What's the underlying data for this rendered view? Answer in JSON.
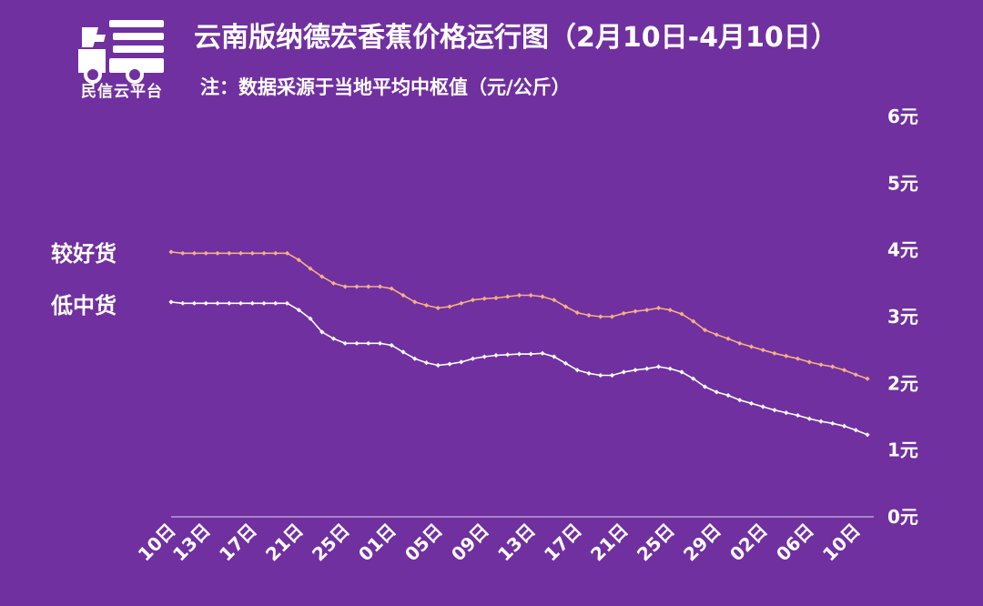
{
  "logo": {
    "name": "minxin-cloud-truck-logo",
    "text": "民信云平台"
  },
  "title": "云南版纳德宏香蕉价格运行图（2月10日-4月10日）",
  "subtitle": "注：数据采源于当地平均中枢值（元/公斤）",
  "colors": {
    "background": "#7030a0",
    "good_series": "#f4b183",
    "low_series": "#ffffff",
    "axis": "#c9b3dc"
  },
  "chart_data": {
    "type": "line",
    "title": "云南版纳德宏香蕉价格运行图（2月10日-4月10日）",
    "subtitle": "注：数据采源于当地平均中枢值（元/公斤）",
    "xlabel": "",
    "ylabel": "",
    "ylim": [
      0,
      6
    ],
    "y_ticks": [
      "0元",
      "1元",
      "2元",
      "3元",
      "4元",
      "5元",
      "6元"
    ],
    "y_axis_side": "right",
    "grid": false,
    "legend": "left-labels",
    "x_ticks": [
      {
        "index": 0,
        "label": "10日"
      },
      {
        "index": 3,
        "label": "13日"
      },
      {
        "index": 7,
        "label": "17日"
      },
      {
        "index": 11,
        "label": "21日"
      },
      {
        "index": 15,
        "label": "25日"
      },
      {
        "index": 19,
        "label": "01日"
      },
      {
        "index": 23,
        "label": "05日"
      },
      {
        "index": 27,
        "label": "09日"
      },
      {
        "index": 31,
        "label": "13日"
      },
      {
        "index": 35,
        "label": "17日"
      },
      {
        "index": 39,
        "label": "21日"
      },
      {
        "index": 43,
        "label": "25日"
      },
      {
        "index": 47,
        "label": "29日"
      },
      {
        "index": 51,
        "label": "02日"
      },
      {
        "index": 55,
        "label": "06日"
      },
      {
        "index": 59,
        "label": "10日"
      }
    ],
    "series": [
      {
        "name": "较好货",
        "values": [
          3.97,
          3.95,
          3.95,
          3.95,
          3.95,
          3.95,
          3.95,
          3.95,
          3.95,
          3.95,
          3.95,
          3.85,
          3.72,
          3.6,
          3.5,
          3.45,
          3.45,
          3.45,
          3.45,
          3.42,
          3.32,
          3.22,
          3.17,
          3.13,
          3.15,
          3.2,
          3.25,
          3.27,
          3.28,
          3.3,
          3.32,
          3.32,
          3.3,
          3.25,
          3.15,
          3.06,
          3.02,
          3.0,
          3.0,
          3.05,
          3.08,
          3.1,
          3.13,
          3.1,
          3.04,
          2.93,
          2.8,
          2.73,
          2.67,
          2.6,
          2.55,
          2.5,
          2.45,
          2.41,
          2.37,
          2.32,
          2.28,
          2.25,
          2.2,
          2.13,
          2.07
        ]
      },
      {
        "name": "低中货",
        "values": [
          3.22,
          3.2,
          3.2,
          3.2,
          3.2,
          3.2,
          3.2,
          3.2,
          3.2,
          3.2,
          3.2,
          3.1,
          2.97,
          2.77,
          2.67,
          2.6,
          2.6,
          2.6,
          2.6,
          2.57,
          2.47,
          2.37,
          2.31,
          2.27,
          2.29,
          2.32,
          2.37,
          2.4,
          2.42,
          2.43,
          2.44,
          2.44,
          2.45,
          2.4,
          2.3,
          2.2,
          2.15,
          2.12,
          2.12,
          2.17,
          2.2,
          2.22,
          2.25,
          2.22,
          2.17,
          2.07,
          1.95,
          1.87,
          1.82,
          1.75,
          1.7,
          1.65,
          1.6,
          1.56,
          1.52,
          1.47,
          1.43,
          1.4,
          1.36,
          1.3,
          1.23
        ]
      }
    ]
  }
}
